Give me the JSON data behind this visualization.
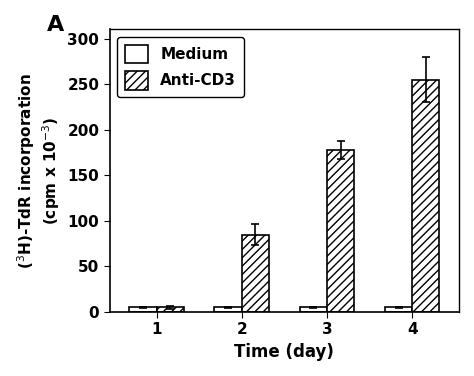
{
  "days": [
    1,
    2,
    3,
    4
  ],
  "medium_values": [
    5,
    5,
    5,
    5
  ],
  "medium_errors": [
    1,
    1,
    1,
    1
  ],
  "anticd3_values": [
    5,
    85,
    178,
    255
  ],
  "anticd3_errors": [
    2,
    12,
    10,
    25
  ],
  "ylim": [
    0,
    310
  ],
  "yticks": [
    0,
    50,
    100,
    150,
    200,
    250,
    300
  ],
  "xlabel": "Time (day)",
  "ylabel": "($^{3}$H)-TdR incorporation\n(cpm x 10$^{-3}$)",
  "panel_label": "A",
  "legend_medium": "Medium",
  "legend_anticd3": "Anti-CD3",
  "bar_width": 0.32,
  "background_color": "#ffffff",
  "bar_color_medium": "#ffffff",
  "bar_color_anticd3": "#ffffff",
  "bar_edge_color": "#000000",
  "label_fontsize": 12,
  "tick_fontsize": 11,
  "legend_fontsize": 11
}
